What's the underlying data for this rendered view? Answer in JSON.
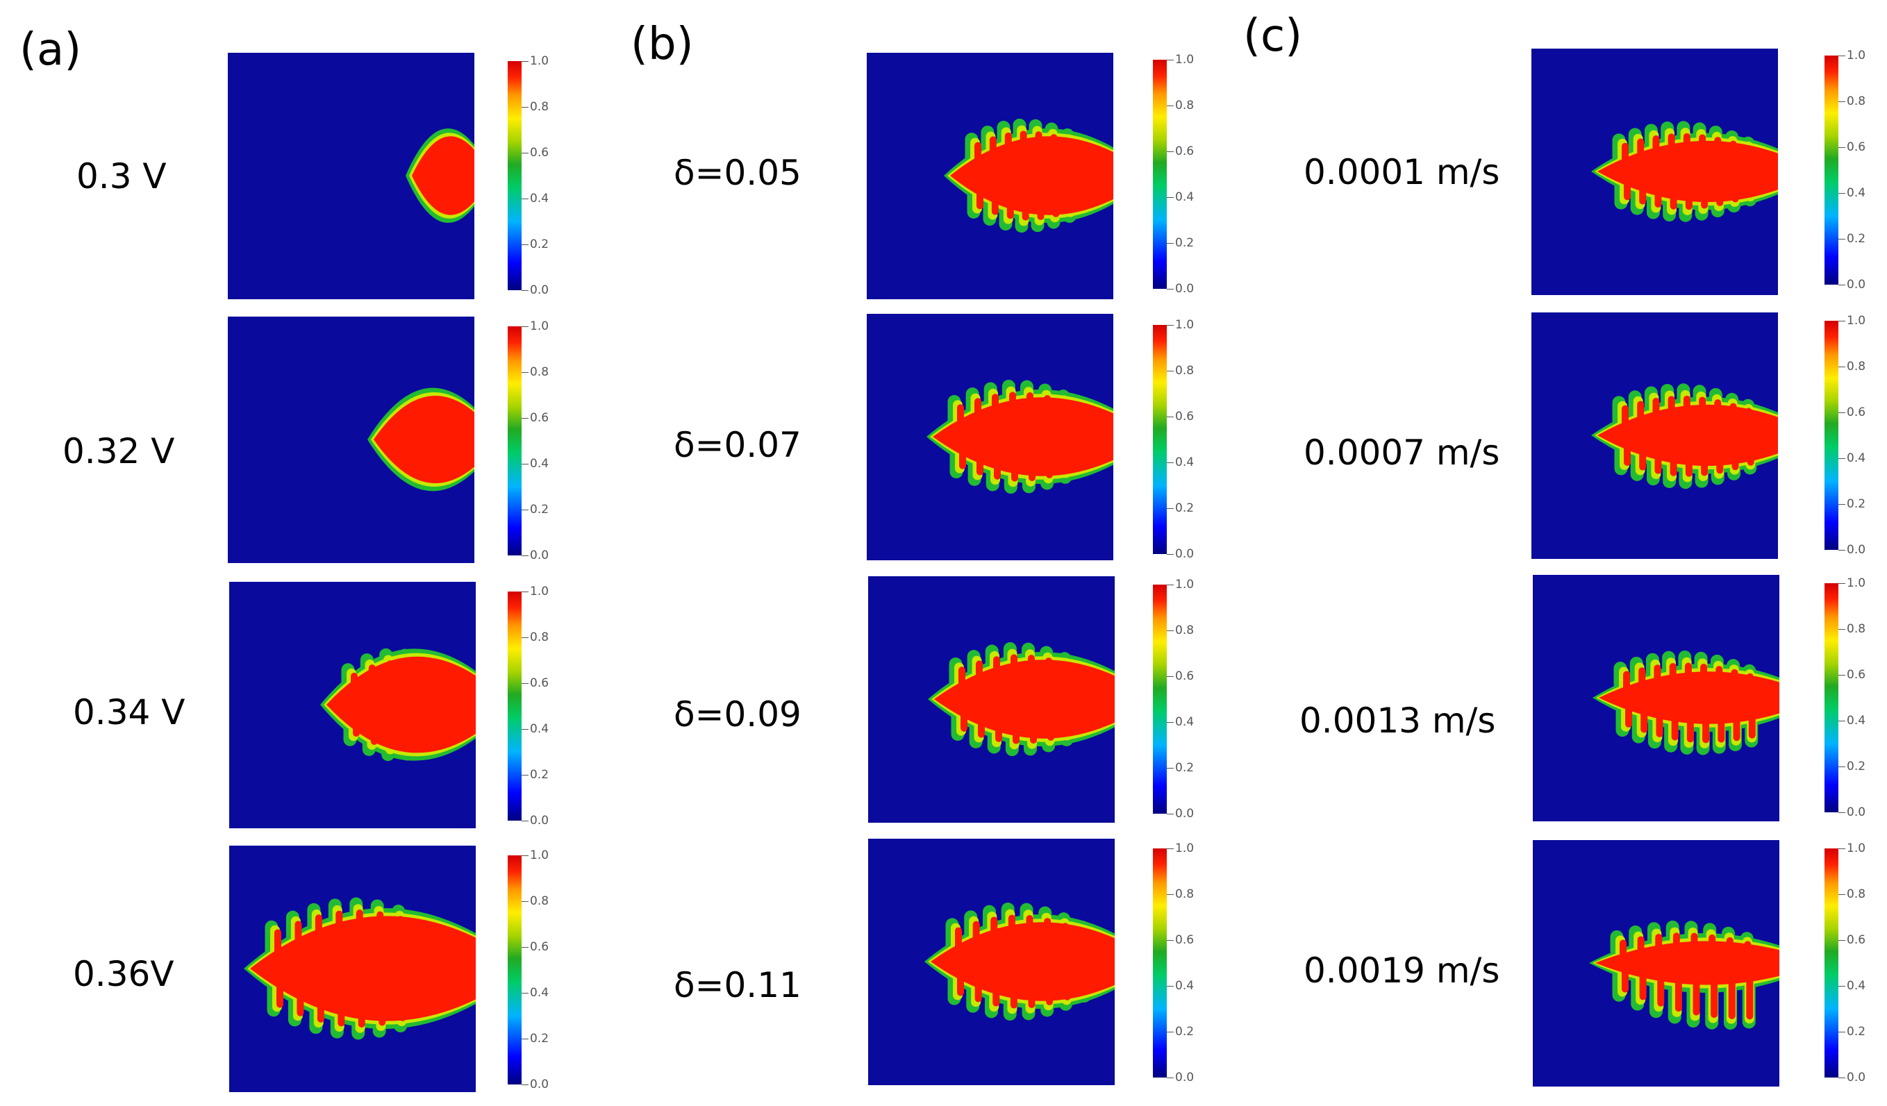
{
  "figure": {
    "panels": [
      {
        "letter": "(a)",
        "rows": [
          "0.3 V",
          "0.32 V",
          "0.34 V",
          "0.36V"
        ]
      },
      {
        "letter": "(b)",
        "rows": [
          "δ=0.05",
          "δ=0.07",
          "δ=0.09",
          "δ=0.11"
        ]
      },
      {
        "letter": "(c)",
        "rows": [
          "0.0001 m/s",
          "0.0007 m/s",
          "0.0013 m/s",
          "0.0019 m/s"
        ]
      }
    ],
    "colorbar_ticks": [
      "0.0",
      "0.2",
      "0.4",
      "0.6",
      "0.8",
      "1.0"
    ],
    "colors": {
      "background": "#0a0a9c",
      "solid": "#ff1a00",
      "interface": "#22bb33",
      "edge": "#c8e800"
    }
  }
}
